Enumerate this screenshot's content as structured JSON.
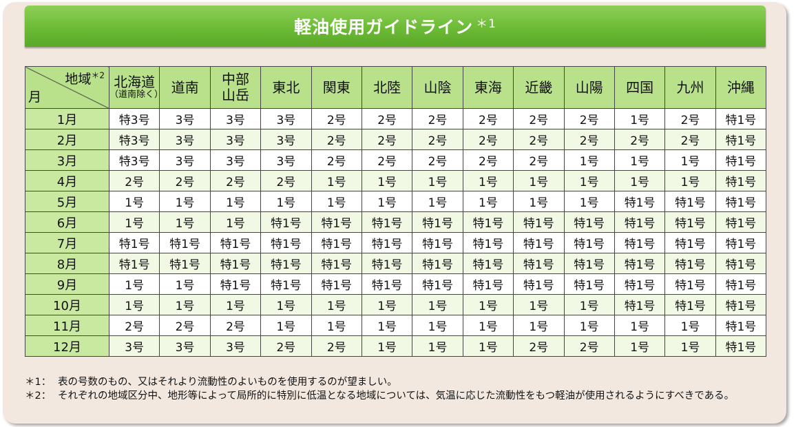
{
  "title": "軽油使用ガイドライン",
  "title_note": "＊1",
  "corner": {
    "region": "地域",
    "region_note": "＊2",
    "month": "月"
  },
  "regions": [
    {
      "name": "北海道",
      "sub": "（道南除く）"
    },
    {
      "name": "道南",
      "sub": ""
    },
    {
      "name": "中部山岳",
      "sub": ""
    },
    {
      "name": "東北",
      "sub": ""
    },
    {
      "name": "関東",
      "sub": ""
    },
    {
      "name": "北陸",
      "sub": ""
    },
    {
      "name": "山陰",
      "sub": ""
    },
    {
      "name": "東海",
      "sub": ""
    },
    {
      "name": "近畿",
      "sub": ""
    },
    {
      "name": "山陽",
      "sub": ""
    },
    {
      "name": "四国",
      "sub": ""
    },
    {
      "name": "九州",
      "sub": ""
    },
    {
      "name": "沖縄",
      "sub": ""
    }
  ],
  "rows": [
    {
      "month": "1月",
      "values": [
        "特3号",
        "3号",
        "3号",
        "3号",
        "2号",
        "2号",
        "2号",
        "2号",
        "2号",
        "2号",
        "1号",
        "2号",
        "特1号"
      ]
    },
    {
      "month": "2月",
      "values": [
        "特3号",
        "3号",
        "3号",
        "3号",
        "2号",
        "2号",
        "2号",
        "2号",
        "2号",
        "2号",
        "2号",
        "2号",
        "特1号"
      ]
    },
    {
      "month": "3月",
      "values": [
        "特3号",
        "3号",
        "3号",
        "3号",
        "2号",
        "2号",
        "2号",
        "2号",
        "2号",
        "1号",
        "1号",
        "1号",
        "特1号"
      ]
    },
    {
      "month": "4月",
      "values": [
        "2号",
        "2号",
        "2号",
        "2号",
        "1号",
        "1号",
        "1号",
        "1号",
        "1号",
        "1号",
        "1号",
        "1号",
        "特1号"
      ]
    },
    {
      "month": "5月",
      "values": [
        "1号",
        "1号",
        "1号",
        "1号",
        "1号",
        "1号",
        "1号",
        "1号",
        "1号",
        "1号",
        "特1号",
        "特1号",
        "特1号"
      ]
    },
    {
      "month": "6月",
      "values": [
        "1号",
        "1号",
        "1号",
        "特1号",
        "特1号",
        "特1号",
        "特1号",
        "特1号",
        "特1号",
        "特1号",
        "特1号",
        "特1号",
        "特1号"
      ]
    },
    {
      "month": "7月",
      "values": [
        "特1号",
        "特1号",
        "特1号",
        "特1号",
        "特1号",
        "特1号",
        "特1号",
        "特1号",
        "特1号",
        "特1号",
        "特1号",
        "特1号",
        "特1号"
      ]
    },
    {
      "month": "8月",
      "values": [
        "特1号",
        "特1号",
        "特1号",
        "特1号",
        "特1号",
        "特1号",
        "特1号",
        "特1号",
        "特1号",
        "特1号",
        "特1号",
        "特1号",
        "特1号"
      ]
    },
    {
      "month": "9月",
      "values": [
        "1号",
        "1号",
        "特1号",
        "特1号",
        "特1号",
        "特1号",
        "特1号",
        "特1号",
        "特1号",
        "特1号",
        "特1号",
        "特1号",
        "特1号"
      ]
    },
    {
      "month": "10月",
      "values": [
        "1号",
        "1号",
        "1号",
        "1号",
        "1号",
        "1号",
        "1号",
        "1号",
        "1号",
        "1号",
        "特1号",
        "特1号",
        "特1号"
      ]
    },
    {
      "month": "11月",
      "values": [
        "2号",
        "2号",
        "2号",
        "1号",
        "1号",
        "1号",
        "1号",
        "1号",
        "1号",
        "1号",
        "1号",
        "1号",
        "特1号"
      ]
    },
    {
      "month": "12月",
      "values": [
        "3号",
        "3号",
        "3号",
        "2号",
        "2号",
        "1号",
        "1号",
        "1号",
        "2号",
        "2号",
        "1号",
        "1号",
        "特1号"
      ]
    }
  ],
  "notes": [
    {
      "mark": "＊1：",
      "text": "表の号数のもの、又はそれより流動性のよいものを使用するのが望ましい。"
    },
    {
      "mark": "＊2：",
      "text": "それぞれの地域区分中、地形等によって局所的に特別に低温となる地域については、気温に応じた流動性をもつ軽油が使用されるようにすべきである。"
    }
  ],
  "colors": {
    "banner": "#6cbb36",
    "header_cell": "#b9e08a",
    "month_cell": "#c9e8a0",
    "panel": "#f3e8df"
  }
}
